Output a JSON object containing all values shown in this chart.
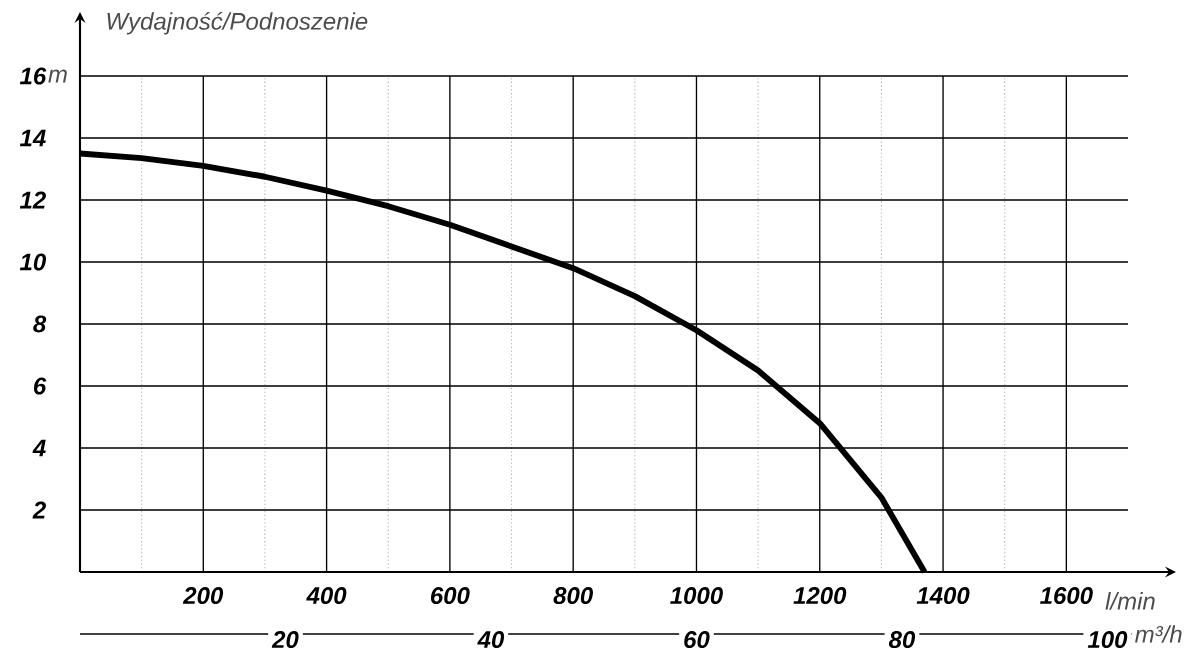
{
  "chart_data": {
    "type": "line",
    "title": "Wydajność/Podnoszenie",
    "xlabel": "l/min",
    "ylabel": "m",
    "x2label": "m³/h",
    "xlim": [
      0,
      1700
    ],
    "xticks": [
      200,
      400,
      600,
      800,
      1000,
      1200,
      1400,
      1600
    ],
    "ylim": [
      0,
      16
    ],
    "yticks": [
      2,
      4,
      6,
      8,
      10,
      12,
      14,
      16
    ],
    "x2lim": [
      0,
      102
    ],
    "x2ticks": [
      20,
      40,
      60,
      80,
      100
    ],
    "grid": true,
    "marker": "none",
    "line_style": "solid",
    "series": [
      {
        "color": "#000000",
        "x": [
          0,
          100,
          200,
          300,
          400,
          500,
          600,
          700,
          800,
          900,
          1000,
          1100,
          1200,
          1300,
          1370
        ],
        "values": [
          13.5,
          13.35,
          13.1,
          12.75,
          12.3,
          11.8,
          11.2,
          10.5,
          9.8,
          8.9,
          7.8,
          6.5,
          4.8,
          2.4,
          0
        ]
      }
    ]
  }
}
